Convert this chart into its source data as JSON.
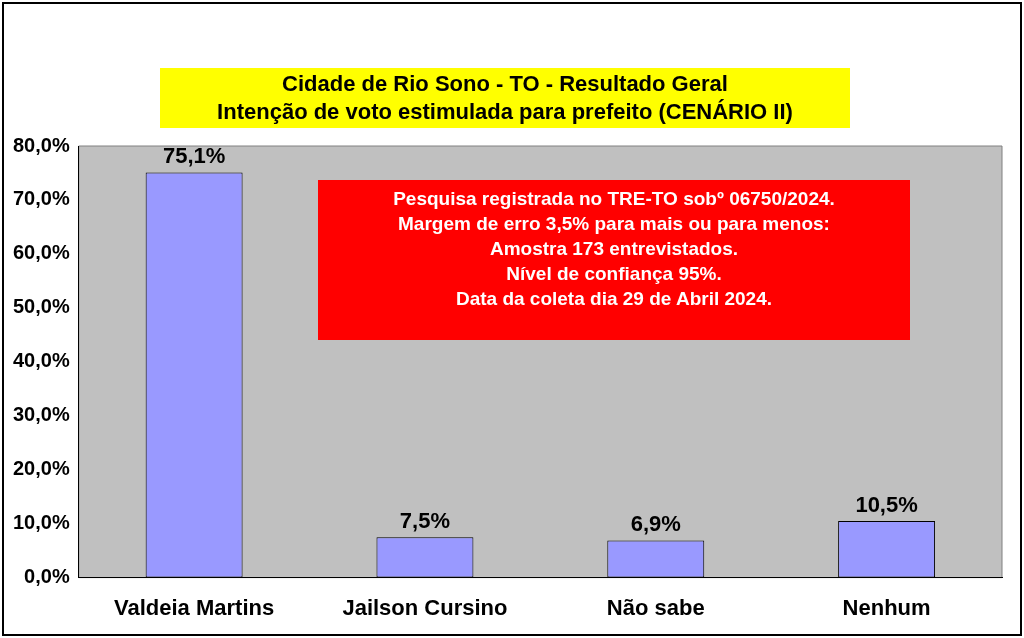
{
  "chart_data": {
    "type": "bar",
    "title": "Cidade de Rio Sono - TO - Resultado Geral",
    "subtitle": "Intenção de voto estimulada para prefeito (CENÁRIO II)",
    "categories": [
      "Valdeia Martins",
      "Jailson Cursino",
      "Não sabe",
      "Nenhum"
    ],
    "values": [
      75.1,
      7.5,
      6.9,
      10.5
    ],
    "color": "#9999ff",
    "value_labels": [
      "75,1%",
      "7,5%",
      "6,9%",
      "10,5%"
    ],
    "ylim": [
      0,
      80
    ],
    "yticks": [
      {
        "value": 0,
        "label": "0,0%"
      },
      {
        "value": 10,
        "label": "10,0%"
      },
      {
        "value": 20,
        "label": "20,0%"
      },
      {
        "value": 30,
        "label": "30,0%"
      },
      {
        "value": 40,
        "label": "40,0%"
      },
      {
        "value": 50,
        "label": "50,0%"
      },
      {
        "value": 60,
        "label": "60,0%"
      },
      {
        "value": 70,
        "label": "70,0%"
      },
      {
        "value": 80,
        "label": "80,0%"
      }
    ],
    "grid": false,
    "legend": false,
    "annotations": [
      "Pesquisa registrada no TRE-TO sobº 06750/2024.",
      "Margem de erro 3,5% para mais ou para menos:",
      "Amostra 173 entrevistados.",
      "Nível de confiança 95%.",
      "Data da coleta dia 29 de Abril 2024."
    ]
  }
}
